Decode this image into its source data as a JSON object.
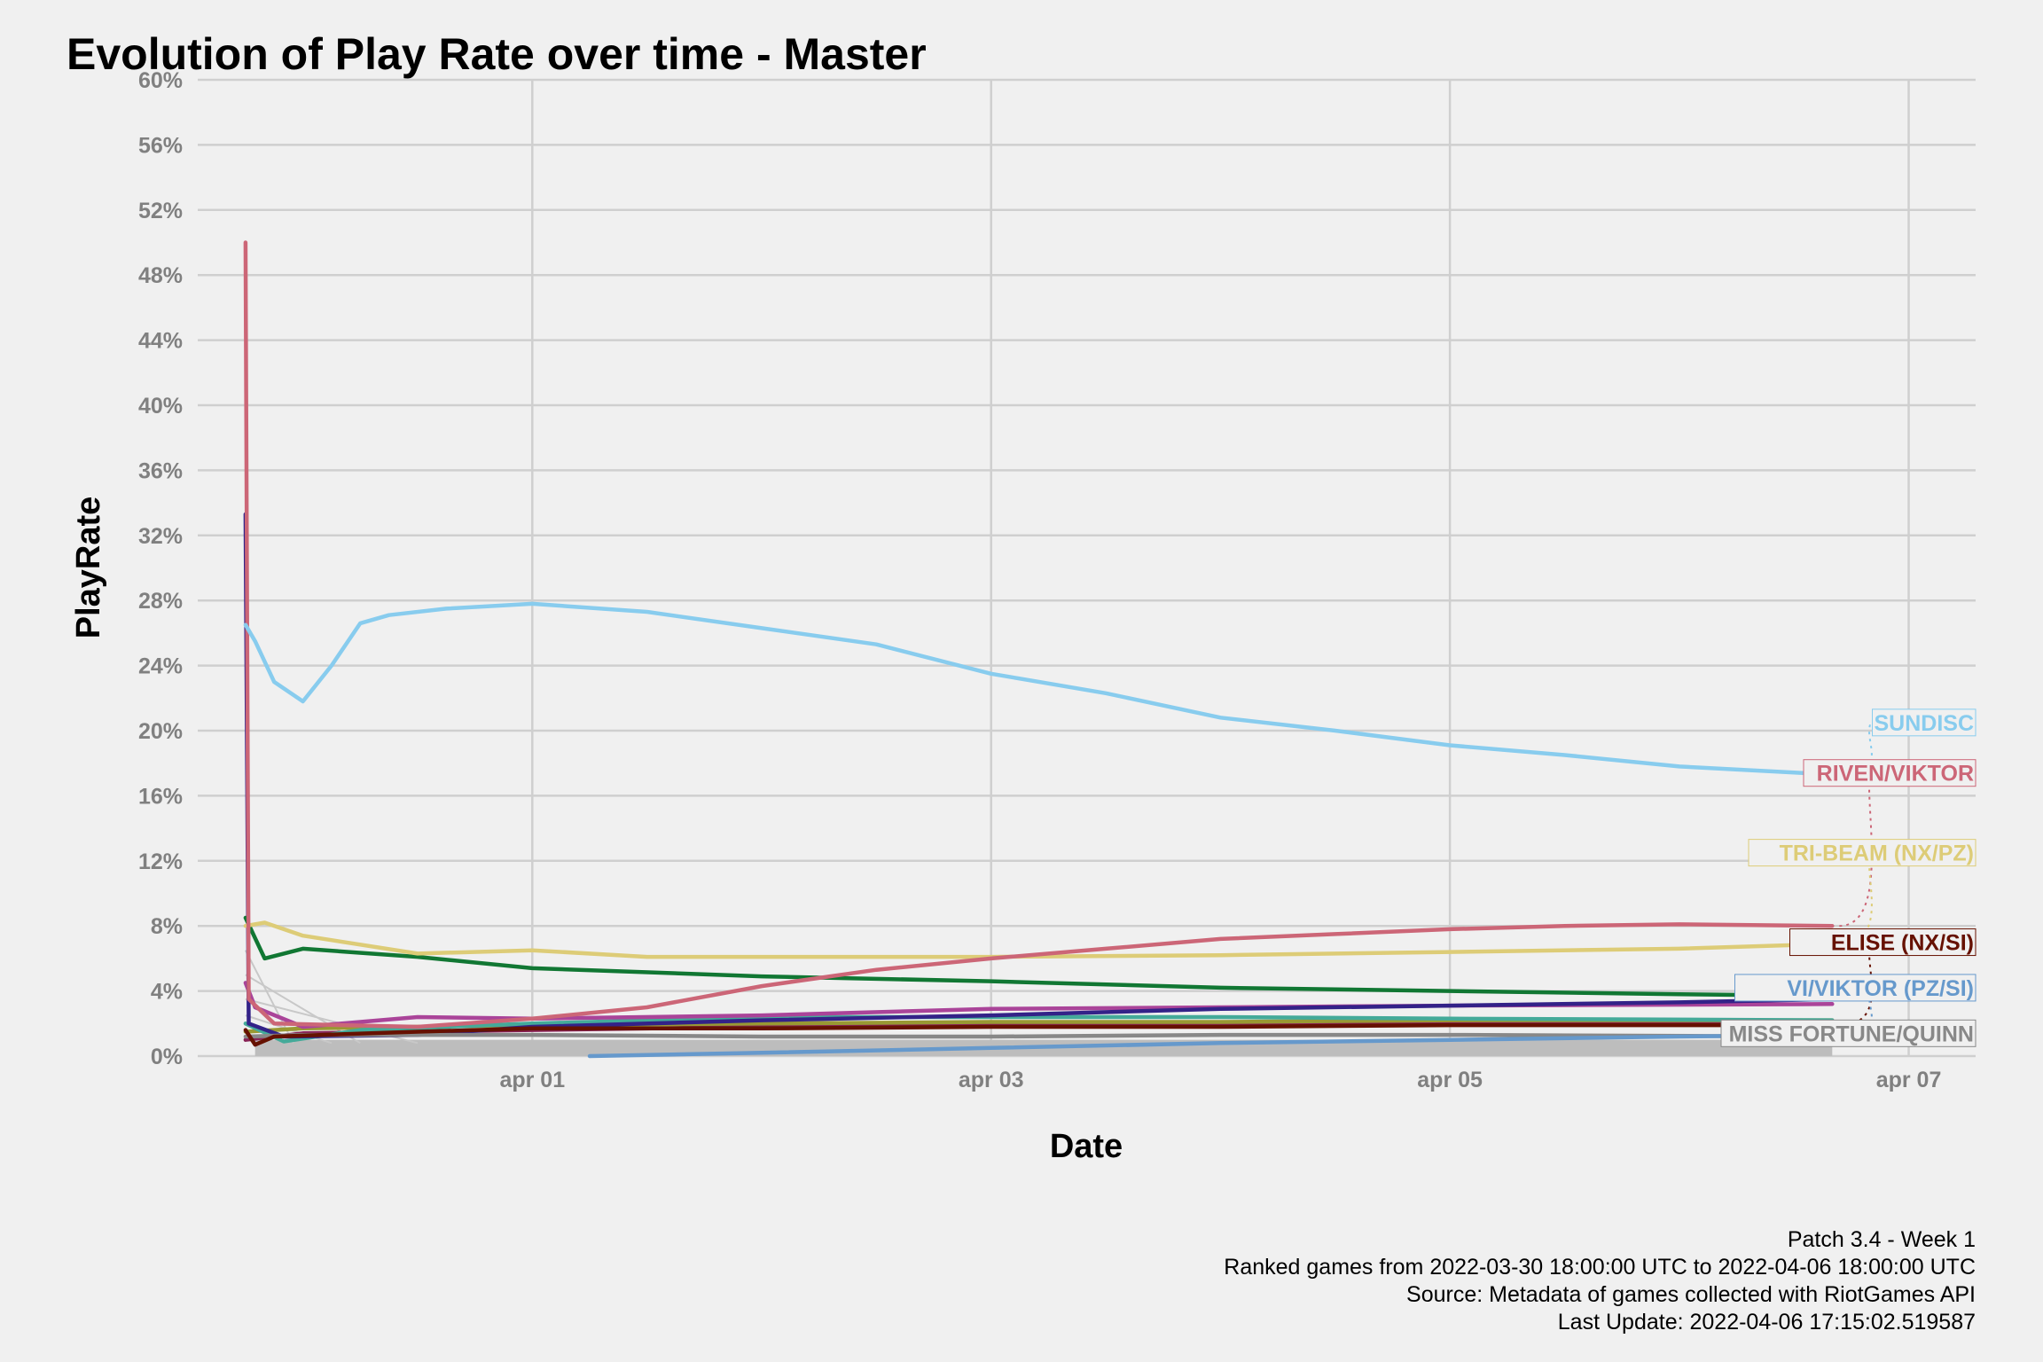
{
  "chart_data": {
    "type": "line",
    "title": "Evolution of Play Rate over time - Master",
    "xlabel": "Date",
    "ylabel": "PlayRate",
    "x_ticks": [
      "apr 01",
      "apr 03",
      "apr 05",
      "apr 07"
    ],
    "x_tick_dates": [
      "2022-04-01",
      "2022-04-03",
      "2022-04-05",
      "2022-04-07"
    ],
    "x_range": [
      "2022-03-30T13:00:00",
      "2022-04-07T07:00:00"
    ],
    "ylim": [
      0,
      60
    ],
    "y_ticks": [
      "0%",
      "4%",
      "8%",
      "12%",
      "16%",
      "20%",
      "24%",
      "28%",
      "32%",
      "36%",
      "40%",
      "44%",
      "48%",
      "52%",
      "56%",
      "60%"
    ],
    "y_tick_values": [
      0,
      4,
      8,
      12,
      16,
      20,
      24,
      28,
      32,
      36,
      40,
      44,
      48,
      52,
      56,
      60
    ],
    "grid": true,
    "legend": "none (series labelled at right edge)",
    "series": [
      {
        "name": "SUNDISC",
        "color": "#88ccee",
        "label": "SUNDISC",
        "label_y": 20.5,
        "points": [
          [
            "2022-03-30T18:00",
            26.5
          ],
          [
            "2022-03-30T19:00",
            25.5
          ],
          [
            "2022-03-30T21:00",
            23
          ],
          [
            "2022-03-31T00:00",
            21.8
          ],
          [
            "2022-03-31T03:00",
            24
          ],
          [
            "2022-03-31T06:00",
            26.6
          ],
          [
            "2022-03-31T09:00",
            27.1
          ],
          [
            "2022-03-31T15:00",
            27.5
          ],
          [
            "2022-04-01T00:00",
            27.8
          ],
          [
            "2022-04-01T12:00",
            27.3
          ],
          [
            "2022-04-02T00:00",
            26.3
          ],
          [
            "2022-04-02T12:00",
            25.3
          ],
          [
            "2022-04-03T00:00",
            23.5
          ],
          [
            "2022-04-03T12:00",
            22.3
          ],
          [
            "2022-04-04T00:00",
            20.8
          ],
          [
            "2022-04-04T12:00",
            20.0
          ],
          [
            "2022-04-05T00:00",
            19.1
          ],
          [
            "2022-04-05T12:00",
            18.5
          ],
          [
            "2022-04-06T00:00",
            17.8
          ],
          [
            "2022-04-06T16:00",
            17.3
          ]
        ]
      },
      {
        "name": "RIVEN/VIKTOR",
        "color": "#cc6677",
        "label": "RIVEN/VIKTOR",
        "label_y": 17.4,
        "points": [
          [
            "2022-03-30T18:00",
            50.0
          ],
          [
            "2022-03-30T18:20",
            3.5
          ],
          [
            "2022-03-30T21:00",
            2.0
          ],
          [
            "2022-03-31T12:00",
            1.8
          ],
          [
            "2022-04-01T00:00",
            2.3
          ],
          [
            "2022-04-01T12:00",
            3.0
          ],
          [
            "2022-04-02T00:00",
            4.3
          ],
          [
            "2022-04-02T12:00",
            5.3
          ],
          [
            "2022-04-03T00:00",
            6.0
          ],
          [
            "2022-04-03T12:00",
            6.6
          ],
          [
            "2022-04-04T00:00",
            7.2
          ],
          [
            "2022-04-04T12:00",
            7.5
          ],
          [
            "2022-04-05T00:00",
            7.8
          ],
          [
            "2022-04-05T12:00",
            8.0
          ],
          [
            "2022-04-06T00:00",
            8.1
          ],
          [
            "2022-04-06T16:00",
            8.0
          ]
        ]
      },
      {
        "name": "TRI-BEAM (NX/PZ)",
        "color": "#ddcc77",
        "label": "TRI-BEAM (NX/PZ)",
        "label_y": 12.5,
        "points": [
          [
            "2022-03-30T18:00",
            8.0
          ],
          [
            "2022-03-30T20:00",
            8.2
          ],
          [
            "2022-03-31T00:00",
            7.4
          ],
          [
            "2022-03-31T12:00",
            6.3
          ],
          [
            "2022-04-01T00:00",
            6.5
          ],
          [
            "2022-04-01T12:00",
            6.1
          ],
          [
            "2022-04-02T00:00",
            6.1
          ],
          [
            "2022-04-03T00:00",
            6.1
          ],
          [
            "2022-04-04T00:00",
            6.2
          ],
          [
            "2022-04-05T00:00",
            6.4
          ],
          [
            "2022-04-06T00:00",
            6.6
          ],
          [
            "2022-04-06T16:00",
            6.9
          ]
        ]
      },
      {
        "name": "ELISE (NX/SI)",
        "color": "#661100",
        "label": "ELISE (NX/SI)",
        "label_y": 7.0,
        "points": [
          [
            "2022-03-30T18:00",
            1.6
          ],
          [
            "2022-03-30T19:00",
            0.7
          ],
          [
            "2022-03-30T21:00",
            1.2
          ],
          [
            "2022-03-31T12:00",
            1.5
          ],
          [
            "2022-04-01T00:00",
            1.7
          ],
          [
            "2022-04-02T00:00",
            1.7
          ],
          [
            "2022-04-03T00:00",
            1.8
          ],
          [
            "2022-04-04T00:00",
            1.8
          ],
          [
            "2022-04-05T00:00",
            1.9
          ],
          [
            "2022-04-06T16:00",
            1.9
          ]
        ]
      },
      {
        "name": "VI/VIKTOR (PZ/SI)",
        "color": "#6699cc",
        "label": "VI/VIKTOR (PZ/SI)",
        "label_y": 4.2,
        "points": [
          [
            "2022-04-01T06:00",
            0.0
          ],
          [
            "2022-04-02T00:00",
            0.2
          ],
          [
            "2022-04-03T00:00",
            0.5
          ],
          [
            "2022-04-04T00:00",
            0.8
          ],
          [
            "2022-04-05T00:00",
            1.0
          ],
          [
            "2022-04-06T00:00",
            1.2
          ],
          [
            "2022-04-06T16:00",
            1.3
          ]
        ]
      },
      {
        "name": "MISS FORTUNE/QUINN",
        "color": "#888888",
        "label": "MISS FORTUNE/QUINN",
        "label_y": 1.4,
        "points": [
          [
            "2022-03-30T18:00",
            1.2
          ],
          [
            "2022-03-31T00:00",
            1.3
          ],
          [
            "2022-04-01T00:00",
            1.3
          ],
          [
            "2022-04-02T00:00",
            1.2
          ],
          [
            "2022-04-03T00:00",
            1.2
          ],
          [
            "2022-04-04T00:00",
            1.3
          ],
          [
            "2022-04-05T00:00",
            1.3
          ],
          [
            "2022-04-06T16:00",
            1.2
          ]
        ]
      },
      {
        "name": "",
        "color": "#117733",
        "label": "",
        "points": [
          [
            "2022-03-30T18:00",
            8.5
          ],
          [
            "2022-03-30T20:00",
            6.0
          ],
          [
            "2022-03-31T00:00",
            6.6
          ],
          [
            "2022-03-31T12:00",
            6.1
          ],
          [
            "2022-04-01T00:00",
            5.4
          ],
          [
            "2022-04-02T00:00",
            4.9
          ],
          [
            "2022-04-03T00:00",
            4.6
          ],
          [
            "2022-04-04T00:00",
            4.2
          ],
          [
            "2022-04-05T00:00",
            4.0
          ],
          [
            "2022-04-06T00:00",
            3.8
          ],
          [
            "2022-04-06T16:00",
            3.7
          ]
        ]
      },
      {
        "name": "",
        "color": "#332288",
        "label": "",
        "points": [
          [
            "2022-03-30T18:00",
            33.3
          ],
          [
            "2022-03-30T18:20",
            2.0
          ],
          [
            "2022-03-30T22:00",
            1.2
          ],
          [
            "2022-03-31T12:00",
            1.3
          ],
          [
            "2022-04-01T00:00",
            1.8
          ],
          [
            "2022-04-02T00:00",
            2.2
          ],
          [
            "2022-04-03T00:00",
            2.5
          ],
          [
            "2022-04-04T00:00",
            2.9
          ],
          [
            "2022-04-05T00:00",
            3.1
          ],
          [
            "2022-04-06T00:00",
            3.3
          ],
          [
            "2022-04-06T16:00",
            3.5
          ]
        ]
      },
      {
        "name": "",
        "color": "#aa4499",
        "label": "",
        "points": [
          [
            "2022-03-30T18:00",
            4.5
          ],
          [
            "2022-03-30T19:00",
            3.0
          ],
          [
            "2022-03-31T00:00",
            1.8
          ],
          [
            "2022-03-31T12:00",
            2.4
          ],
          [
            "2022-04-01T00:00",
            2.3
          ],
          [
            "2022-04-02T00:00",
            2.5
          ],
          [
            "2022-04-03T00:00",
            2.9
          ],
          [
            "2022-04-04T00:00",
            3.0
          ],
          [
            "2022-04-05T00:00",
            3.1
          ],
          [
            "2022-04-06T16:00",
            3.2
          ]
        ]
      },
      {
        "name": "",
        "color": "#44aa99",
        "label": "",
        "points": [
          [
            "2022-03-30T18:00",
            2.0
          ],
          [
            "2022-03-30T22:00",
            0.9
          ],
          [
            "2022-03-31T06:00",
            1.6
          ],
          [
            "2022-04-01T00:00",
            2.0
          ],
          [
            "2022-04-02T00:00",
            2.4
          ],
          [
            "2022-04-03T00:00",
            2.4
          ],
          [
            "2022-04-04T00:00",
            2.4
          ],
          [
            "2022-04-05T00:00",
            2.3
          ],
          [
            "2022-04-06T16:00",
            2.2
          ]
        ]
      },
      {
        "name": "",
        "color": "#999933",
        "label": "",
        "points": [
          [
            "2022-03-30T18:00",
            1.5
          ],
          [
            "2022-03-31T00:00",
            1.7
          ],
          [
            "2022-04-01T00:00",
            1.9
          ],
          [
            "2022-04-02T00:00",
            2.0
          ],
          [
            "2022-04-03T00:00",
            2.1
          ],
          [
            "2022-04-04T00:00",
            2.1
          ],
          [
            "2022-04-05T00:00",
            2.2
          ],
          [
            "2022-04-06T16:00",
            2.2
          ]
        ]
      },
      {
        "name": "",
        "color": "#882255",
        "label": "",
        "points": [
          [
            "2022-03-30T18:00",
            1.0
          ],
          [
            "2022-03-31T00:00",
            1.4
          ],
          [
            "2022-04-01T00:00",
            1.6
          ],
          [
            "2022-04-02T00:00",
            1.8
          ],
          [
            "2022-04-03T00:00",
            1.9
          ],
          [
            "2022-04-04T00:00",
            2.0
          ],
          [
            "2022-04-05T00:00",
            2.0
          ],
          [
            "2022-04-06T16:00",
            2.0
          ]
        ]
      }
    ]
  },
  "caption": {
    "line1": "Patch 3.4 - Week 1",
    "line2": "Ranked games from 2022-03-30 18:00:00 UTC to 2022-04-06 18:00:00 UTC",
    "line3": "Source: Metadata of games collected with RiotGames API",
    "line4": "Last Update: 2022-04-06 17:15:02.519587"
  }
}
